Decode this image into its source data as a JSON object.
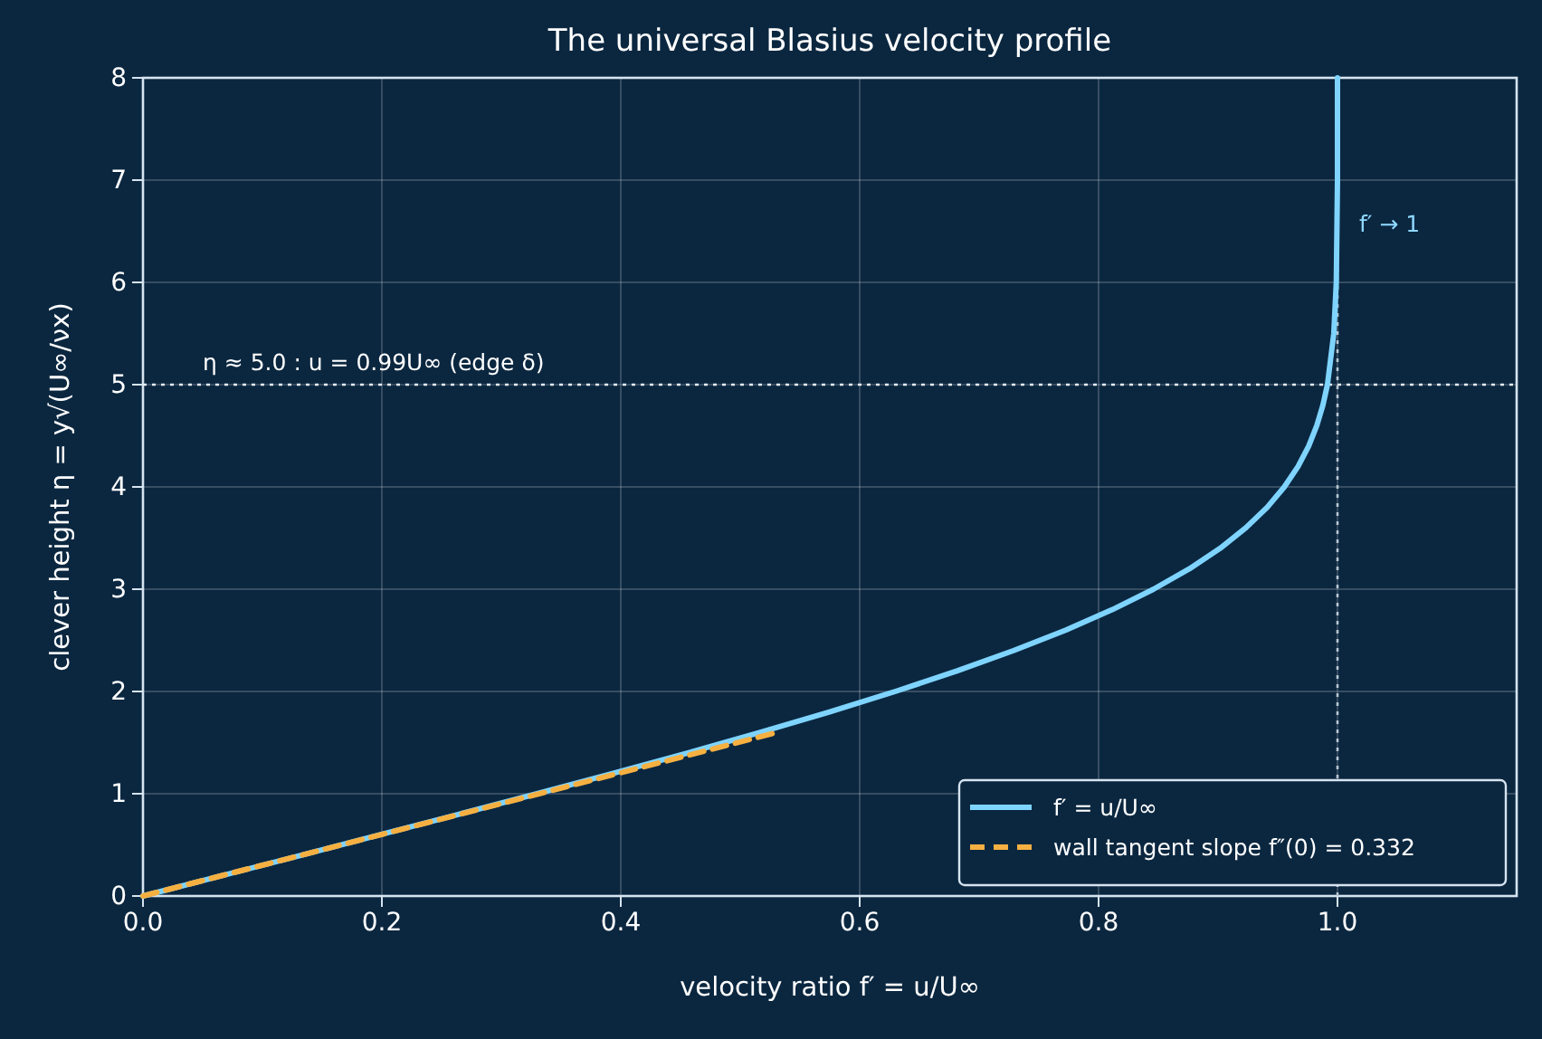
{
  "chart_data": {
    "type": "line",
    "title": "The universal Blasius velocity profile",
    "xlabel": "velocity ratio  f′ = u/U∞",
    "ylabel": "clever height  η = y√(U∞/νx)",
    "xlim": [
      0,
      1.15
    ],
    "xticks": [
      {
        "value": 0,
        "label": "0.0"
      },
      {
        "value": 0.2,
        "label": "0.2"
      },
      {
        "value": 0.4,
        "label": "0.4"
      },
      {
        "value": 0.6,
        "label": "0.6"
      },
      {
        "value": 0.8,
        "label": "0.8"
      },
      {
        "value": 1.0,
        "label": "1.0"
      }
    ],
    "ylim": [
      0,
      8
    ],
    "yticks": [
      0,
      1,
      2,
      3,
      4,
      5,
      6,
      7,
      8
    ],
    "grid": true,
    "legend": "bottom right",
    "series": [
      {
        "name": "f′ = u/U∞",
        "color": "#7fd4ff",
        "line_style": "solid",
        "x": [
          0,
          0.0664,
          0.1328,
          0.1989,
          0.2647,
          0.3298,
          0.3938,
          0.4563,
          0.5168,
          0.5748,
          0.6298,
          0.6813,
          0.729,
          0.7725,
          0.8115,
          0.846,
          0.8761,
          0.9018,
          0.9233,
          0.9411,
          0.9555,
          0.967,
          0.9759,
          0.9827,
          0.9878,
          0.9916,
          0.9969,
          0.999,
          1.0,
          1.0
        ],
        "values": [
          0,
          0.2,
          0.4,
          0.6,
          0.8,
          1.0,
          1.2,
          1.4,
          1.6,
          1.8,
          2.0,
          2.2,
          2.4,
          2.6,
          2.8,
          3.0,
          3.2,
          3.4,
          3.6,
          3.8,
          4.0,
          4.2,
          4.4,
          4.6,
          4.8,
          5.0,
          5.5,
          6.0,
          7.0,
          8.0
        ]
      },
      {
        "name": "wall tangent slope f″(0) = 0.332",
        "color": "#f5b041",
        "line_style": "dashed",
        "x": [
          0,
          0.531
        ],
        "values": [
          0,
          1.6
        ]
      }
    ],
    "ref_lines": [
      {
        "axis": "y",
        "value": 5,
        "color": "#e6eef5",
        "line_style": "dotted"
      },
      {
        "axis": "x",
        "value": 1.0,
        "color": "#b8c6d3",
        "line_style": "dotted"
      }
    ],
    "annotations": [
      {
        "text": "η ≈ 5.0 : u = 0.99U∞ (edge δ)",
        "x": 0.05,
        "y": 5
      },
      "f′ → 1"
    ]
  }
}
